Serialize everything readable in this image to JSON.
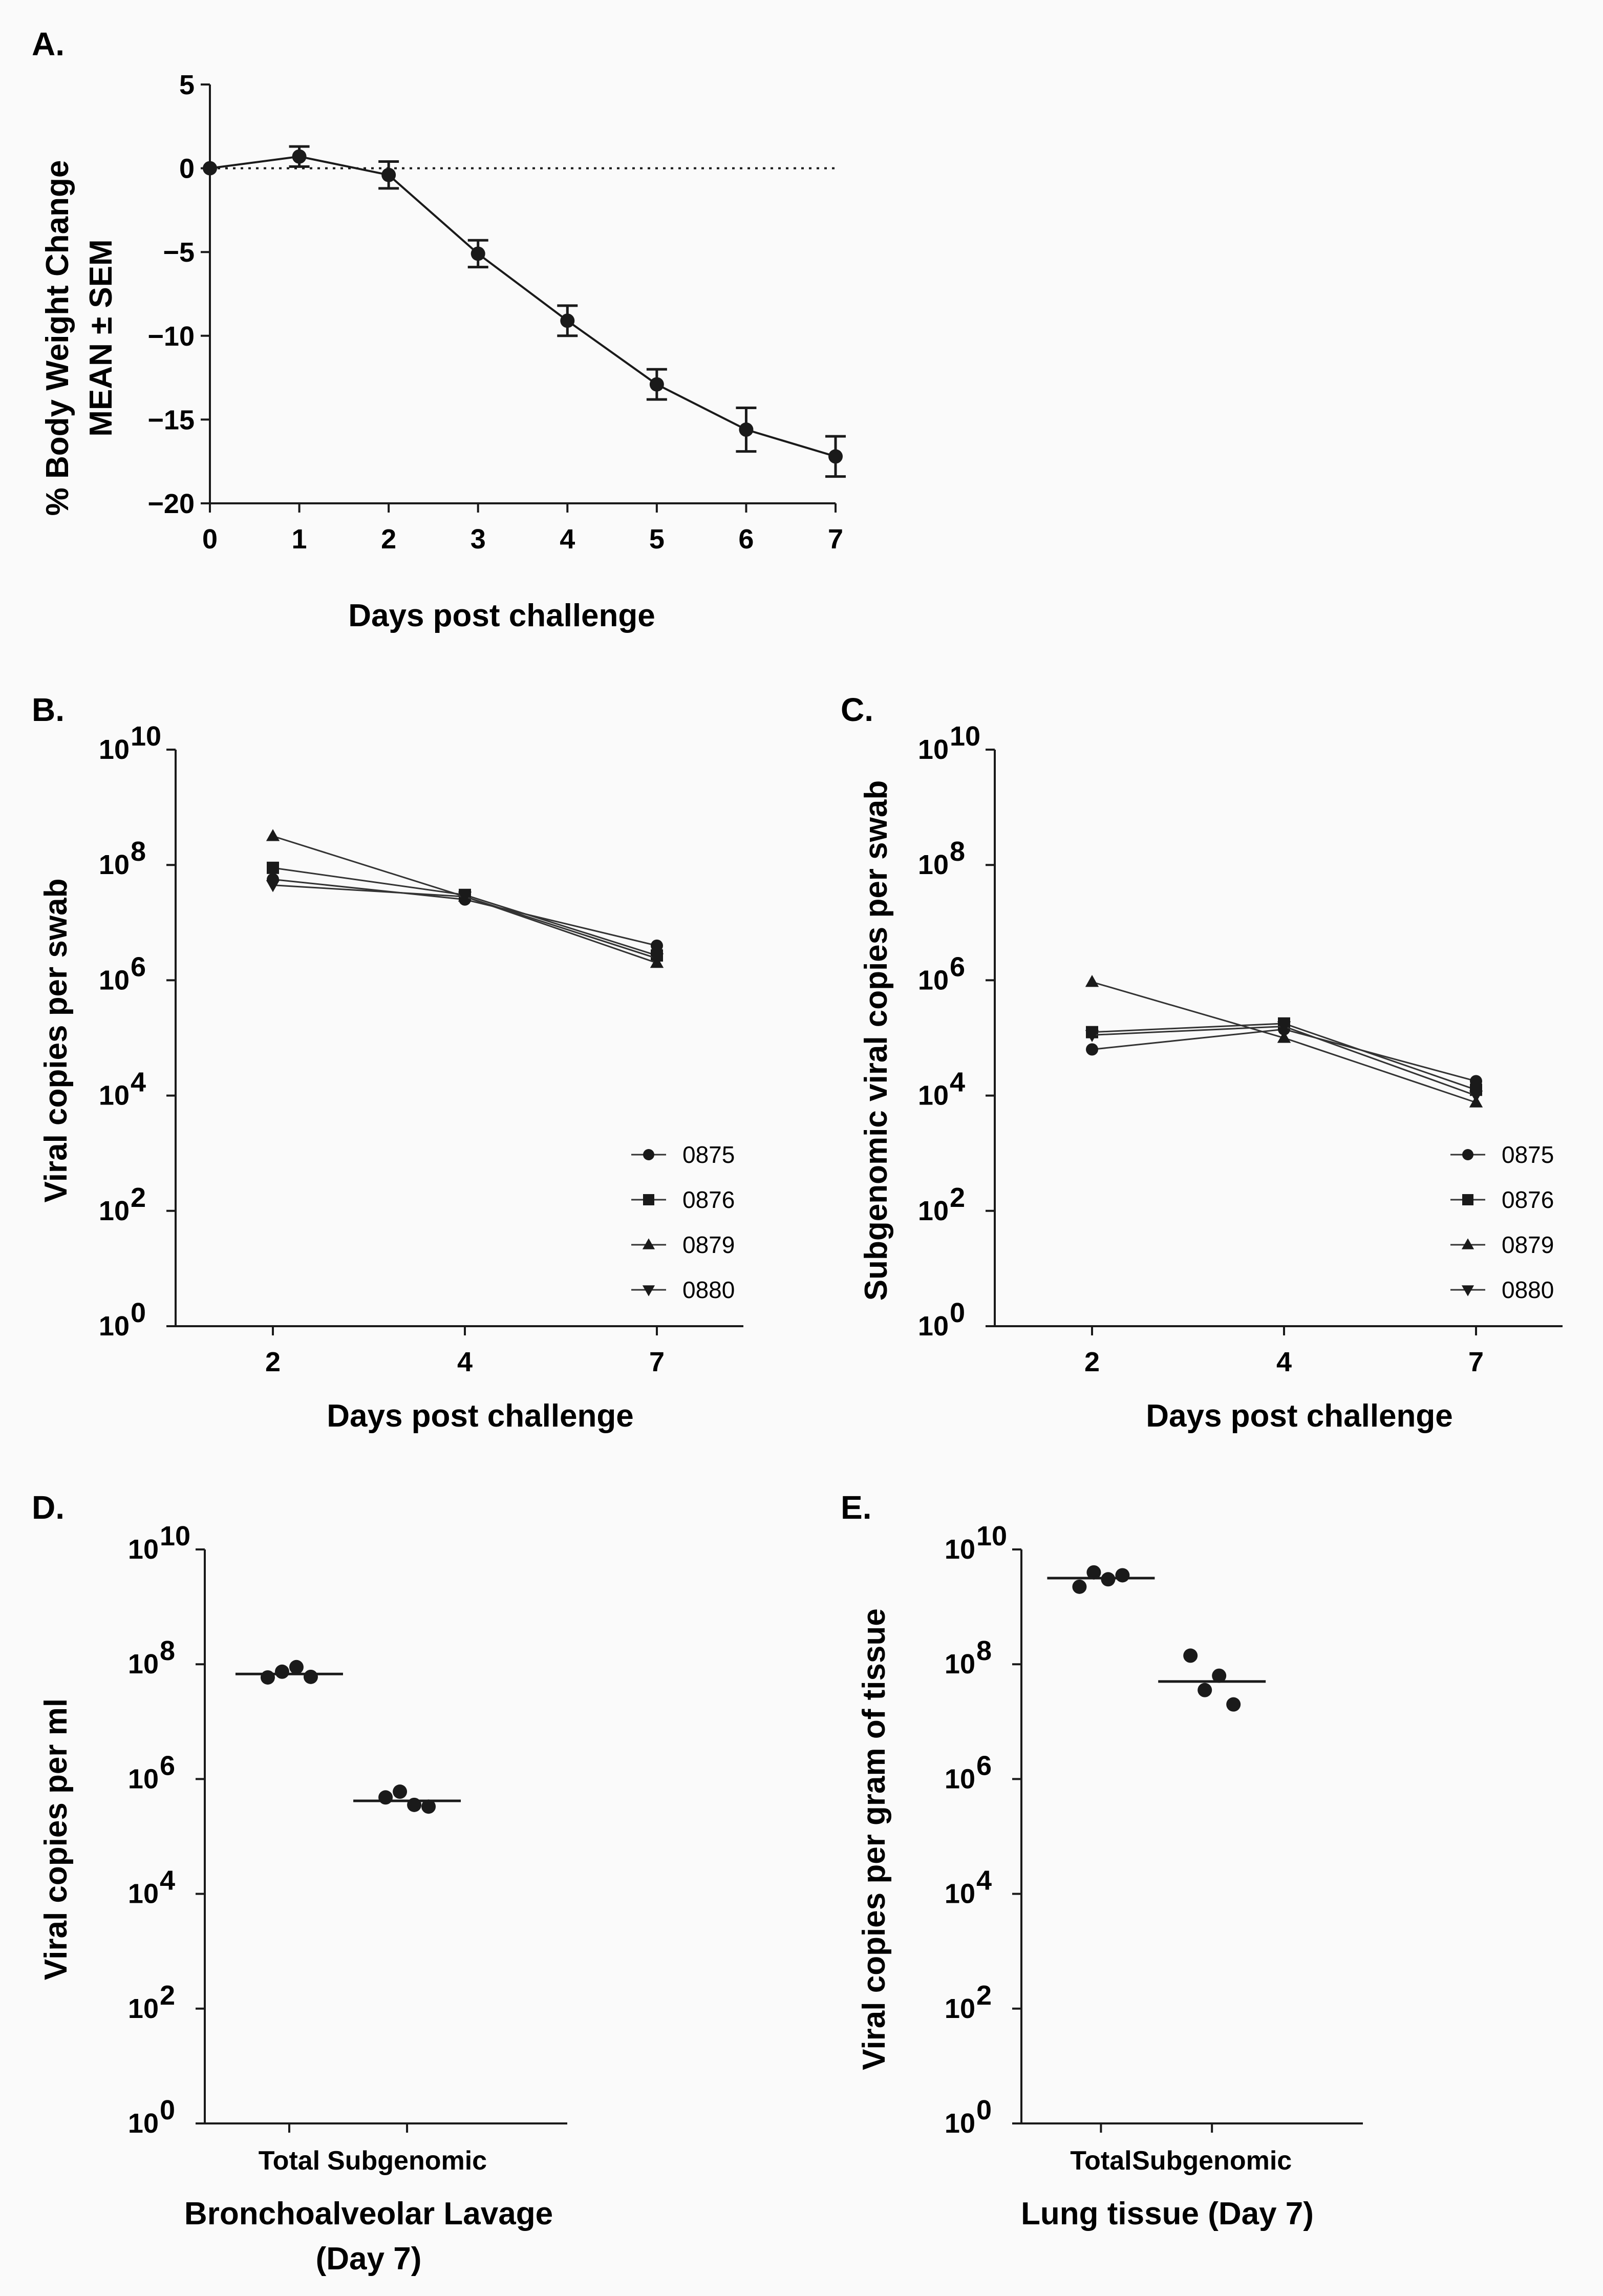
{
  "chart_data": [
    {
      "panel": "A.",
      "type": "line",
      "xlabel": "Days post challenge",
      "ylabel_lines": [
        "% Body Weight Change",
        "MEAN ± SEM"
      ],
      "xlim": [
        0,
        7
      ],
      "ylim": [
        -20,
        5
      ],
      "xticks": [
        0,
        1,
        2,
        3,
        4,
        5,
        6,
        7
      ],
      "yticks": [
        5,
        0,
        -5,
        -10,
        -15,
        -20
      ],
      "ytick_labels": [
        "5",
        "0",
        "−5",
        "−10",
        "−15",
        "−20"
      ],
      "reference_line": 0,
      "series": [
        {
          "name": "mean",
          "x": [
            0,
            1,
            2,
            3,
            4,
            5,
            6,
            7
          ],
          "y": [
            0,
            0.7,
            -0.4,
            -5.1,
            -9.1,
            -12.9,
            -15.6,
            -17.2
          ],
          "sem": [
            0,
            0.6,
            0.8,
            0.8,
            0.9,
            0.9,
            1.3,
            1.2
          ]
        }
      ]
    },
    {
      "panel": "B.",
      "type": "line",
      "scale": "log10",
      "xlabel": "Days post challenge",
      "ylabel": "Viral copies per swab",
      "xcategories": [
        "2",
        "4",
        "7"
      ],
      "ylim_exp": [
        0,
        10
      ],
      "ytick_exps": [
        "0",
        "2",
        "4",
        "6",
        "8",
        "10"
      ],
      "series": [
        {
          "name": "0875",
          "marker": "circle",
          "log10": [
            7.75,
            7.4,
            6.6
          ]
        },
        {
          "name": "0876",
          "marker": "square",
          "log10": [
            7.95,
            7.48,
            6.43
          ]
        },
        {
          "name": "0879",
          "marker": "triangle-up",
          "log10": [
            8.5,
            7.45,
            6.3
          ]
        },
        {
          "name": "0880",
          "marker": "triangle-down",
          "log10": [
            7.65,
            7.45,
            6.38
          ]
        }
      ]
    },
    {
      "panel": "C.",
      "type": "line",
      "scale": "log10",
      "xlabel": "Days post challenge",
      "ylabel": "Subgenomic viral copies per swab",
      "xcategories": [
        "2",
        "4",
        "7"
      ],
      "ylim_exp": [
        0,
        10
      ],
      "ytick_exps": [
        "0",
        "2",
        "4",
        "6",
        "8",
        "10"
      ],
      "series": [
        {
          "name": "0875",
          "marker": "circle",
          "log10": [
            4.8,
            5.15,
            4.25
          ]
        },
        {
          "name": "0876",
          "marker": "square",
          "log10": [
            5.1,
            5.25,
            4.1
          ]
        },
        {
          "name": "0879",
          "marker": "triangle-up",
          "log10": [
            5.97,
            5.0,
            3.88
          ]
        },
        {
          "name": "0880",
          "marker": "triangle-down",
          "log10": [
            5.05,
            5.2,
            4.0
          ]
        }
      ]
    },
    {
      "panel": "D.",
      "type": "scatter",
      "scale": "log10",
      "ylabel": "Viral copies per ml",
      "xlabel_lines": [
        "Bronchoalveolar Lavage",
        "(Day 7)"
      ],
      "categories": [
        "Total",
        "Subgenomic"
      ],
      "ylim_exp": [
        0,
        10
      ],
      "ytick_exps": [
        "0",
        "2",
        "4",
        "6",
        "8",
        "10"
      ],
      "points_log10": [
        [
          7.77,
          7.87,
          7.95,
          7.78
        ],
        [
          5.68,
          5.78,
          5.55,
          5.52
        ]
      ],
      "median_log10": [
        7.83,
        5.62
      ]
    },
    {
      "panel": "E.",
      "type": "scatter",
      "scale": "log10",
      "ylabel": "Viral copies per gram of tissue",
      "xlabel_lines": [
        "Lung tissue (Day 7)"
      ],
      "categories": [
        "Total",
        "Subgenomic"
      ],
      "ylim_exp": [
        0,
        10
      ],
      "ytick_exps": [
        "0",
        "2",
        "4",
        "6",
        "8",
        "10"
      ],
      "points_log10": [
        [
          9.35,
          9.6,
          9.48,
          9.55
        ],
        [
          8.15,
          7.55,
          7.8,
          7.3
        ]
      ],
      "median_log10": [
        9.5,
        7.7
      ]
    }
  ]
}
